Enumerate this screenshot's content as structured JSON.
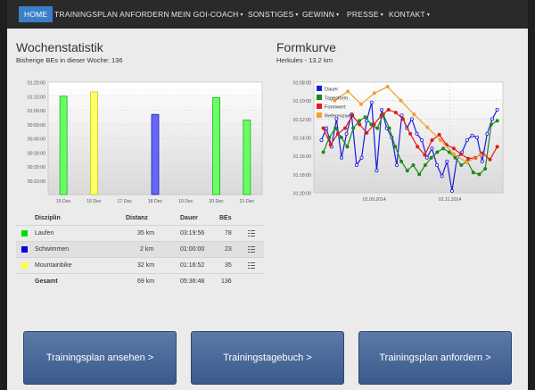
{
  "nav": {
    "items": [
      {
        "label": "HOME",
        "active": true
      },
      {
        "label": "TRAININGSPLAN ANFORDERN"
      },
      {
        "label": "MEIN GOI-COACH",
        "dropdown": true
      },
      {
        "label": "SONSTIGES",
        "dropdown": true
      },
      {
        "label": "GEWINN",
        "dropdown": true
      },
      {
        "label": "PRESSE",
        "dropdown": true
      },
      {
        "label": "KONTAKT",
        "dropdown": true
      }
    ],
    "caret": "▾"
  },
  "week": {
    "title": "Wochenstatistik",
    "subtitle": "Bisherige BEs in dieser Woche: 136"
  },
  "form": {
    "title": "Formkurve",
    "subtitle": "Herkules - 13.2 km"
  },
  "chart_data": [
    {
      "type": "bar",
      "title": "",
      "categories": [
        "15 Dec",
        "16 Dec",
        "17 Dec",
        "18 Dec",
        "19 Dec",
        "20 Dec",
        "21 Dec"
      ],
      "y_ticks": [
        "01:20:00",
        "01:10:00",
        "01:00:00",
        "00:50:00",
        "00:40:00",
        "00:30:00",
        "00:20:00",
        "00:10:00"
      ],
      "ylim_minutes": [
        0,
        80
      ],
      "bars": [
        {
          "category": "15 Dec",
          "minutes": 70,
          "color": "#66ff66"
        },
        {
          "category": "16 Dec",
          "minutes": 73,
          "color": "#ffff66"
        },
        {
          "category": "18 Dec",
          "minutes": 57,
          "color": "#6666ff"
        },
        {
          "category": "20 Dec",
          "minutes": 69,
          "color": "#66ff66"
        },
        {
          "category": "21 Dec",
          "minutes": 53,
          "color": "#66ff66"
        }
      ],
      "grid": true
    },
    {
      "type": "line",
      "title": "",
      "y_ticks": [
        "01:08:00",
        "01:10:00",
        "01:12:00",
        "01:14:00",
        "01:16:00",
        "01:18:00",
        "01:20:00"
      ],
      "ylim_minutes": [
        68,
        80
      ],
      "y_reversed": true,
      "x_ticks": [
        "01.09.2014",
        "01.11.2014"
      ],
      "legend_position": "top-left",
      "series": [
        {
          "name": "Dauer",
          "color": "#1a1adc",
          "values": [
            74.3,
            73.0,
            75.0,
            72.0,
            76.2,
            73.6,
            71.5,
            77.0,
            76.2,
            72.2,
            70.2,
            77.6,
            71.0,
            73.0,
            74.0,
            77.0,
            71.6,
            73.0,
            72.0,
            73.6,
            74.3,
            76.2,
            75.2,
            77.0,
            78.2,
            76.6,
            79.8,
            76.2,
            75.6,
            74.3,
            73.8,
            74.0,
            76.6,
            73.6,
            72.0,
            71.0
          ]
        },
        {
          "name": "Tagesform",
          "color": "#1a8a1a",
          "values": [
            75.6,
            74.0,
            73.0,
            74.0,
            75.0,
            73.0,
            72.2,
            71.8,
            72.6,
            73.0,
            71.5,
            73.0,
            75.0,
            76.6,
            77.6,
            77.0,
            78.0,
            77.0,
            76.2,
            75.6,
            75.2,
            75.6,
            76.2,
            77.0,
            76.6,
            77.8,
            78.0,
            77.4,
            72.6,
            72.2
          ]
        },
        {
          "name": "Formwert",
          "color": "#e11b1b",
          "values": [
            73.0,
            74.8,
            73.6,
            73.0,
            71.6,
            72.6,
            73.5,
            72.6,
            71.6,
            71.0,
            71.3,
            72.0,
            73.6,
            75.0,
            75.9,
            74.3,
            73.7,
            74.8,
            75.2,
            75.8,
            76.3,
            76.2,
            75.7,
            76.4,
            75.0
          ]
        },
        {
          "name": "Referenzwert",
          "color": "#f0a030",
          "values": [
            70.0,
            69.0,
            70.4,
            69.2,
            68.5,
            70.0,
            71.5,
            72.9,
            74.3,
            75.8,
            76.7,
            75.9
          ]
        }
      ],
      "grid": true
    }
  ],
  "table": {
    "headers": [
      "Disziplin",
      "Distanz",
      "Dauer",
      "BEs"
    ],
    "rows": [
      {
        "name": "Laufen",
        "dist": "35 km",
        "time": "03:19:56",
        "bes": "78",
        "color": "#00e000"
      },
      {
        "name": "Schwimmen",
        "dist": "2 km",
        "time": "01:00:00",
        "bes": "23",
        "color": "#0000e0"
      },
      {
        "name": "Mountainbike",
        "dist": "32 km",
        "time": "01:16:52",
        "bes": "35",
        "color": "#ffff33"
      }
    ],
    "total": {
      "name": "Gesamt",
      "dist": "69 km",
      "time": "05:36:48",
      "bes": "136"
    },
    "menu_icon": "list-icon"
  },
  "buttons": [
    {
      "label": "Trainingsplan ansehen >"
    },
    {
      "label": "Trainingstagebuch >"
    },
    {
      "label": "Trainingsplan anfordern >"
    }
  ]
}
